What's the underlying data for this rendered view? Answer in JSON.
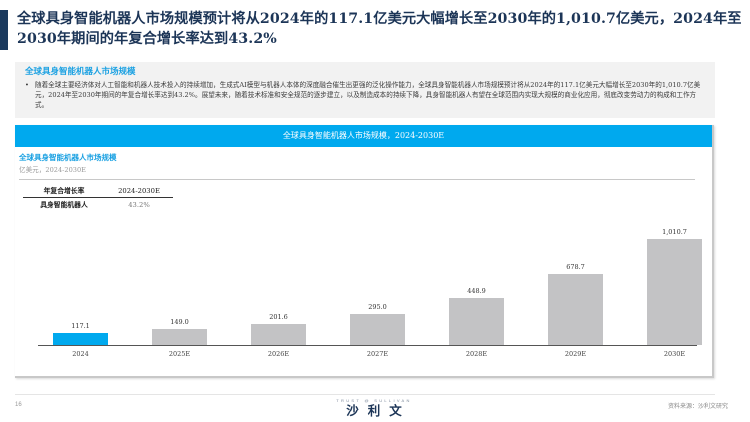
{
  "page": {
    "title": "全球具身智能机器人市场规模预计将从2024年的117.1亿美元大幅增长至2030年的1,010.7亿美元，2024年至2030年期间的年复合增长率达到43.2%",
    "page_number": "16"
  },
  "callout": {
    "heading": "全球具身智能机器人市场规模",
    "bullet": "•",
    "body": "随着全球主要经济体对人工智能和机器人技术投入的持续增加，生成式AI模型与机器人本体的深度融合催生出更强的泛化操作能力，全球具身智能机器人市场规模预计将从2024年的117.1亿美元大幅增长至2030年的1,010.7亿美元，2024年至2030年期间的年复合增长率达到43.2%。展望未来，随着技术标准和安全规范的逐步建立，以及制造成本的持续下降，具身智能机器人有望在全球范围内实现大规模的商业化应用，彻底改变劳动力的构成和工作方式。"
  },
  "panel": {
    "header": "全球具身智能机器人市场规模，2024-2030E",
    "chart_title": "全球具身智能机器人市场规模",
    "unit": "亿美元，2024-2030E"
  },
  "cagr_table": {
    "headers": [
      "年复合增长率",
      "2024-2030E"
    ],
    "rows": [
      {
        "label": "具身智能机器人",
        "value": "43.2%"
      }
    ]
  },
  "chart_data": {
    "type": "bar",
    "title": "全球具身智能机器人市场规模，2024-2030E",
    "subtitle": "亿美元，2024-2030E",
    "xlabel": "",
    "ylabel": "亿美元",
    "categories": [
      "2024",
      "2025E",
      "2026E",
      "2027E",
      "2028E",
      "2029E",
      "2030E"
    ],
    "values": [
      117.1,
      149.0,
      201.6,
      295.0,
      448.9,
      678.7,
      1010.7
    ],
    "value_labels": [
      "117.1",
      "149.0",
      "201.6",
      "295.0",
      "448.9",
      "678.7",
      "1,010.7"
    ],
    "ylim": [
      0,
      1100
    ],
    "grid": false,
    "legend": "none",
    "highlight_index": 0,
    "colors": {
      "highlight": "#00a9ee",
      "default": "#c3c3c5"
    },
    "annotations": [
      {
        "label": "年复合增长率 2024-2030E",
        "value": "43.2%"
      }
    ]
  },
  "footer": {
    "logo_tagline": "TRUST  @  SULLIVAN",
    "logo_name": "沙利文",
    "source": "资料来源：沙利文研究"
  },
  "colors": {
    "title_text": "#1c3557",
    "accent_bar": "#1b3a5e",
    "header_cyan": "#00a9ee",
    "callout_bg": "#f2f2f2",
    "callout_heading": "#1ba1e2"
  }
}
